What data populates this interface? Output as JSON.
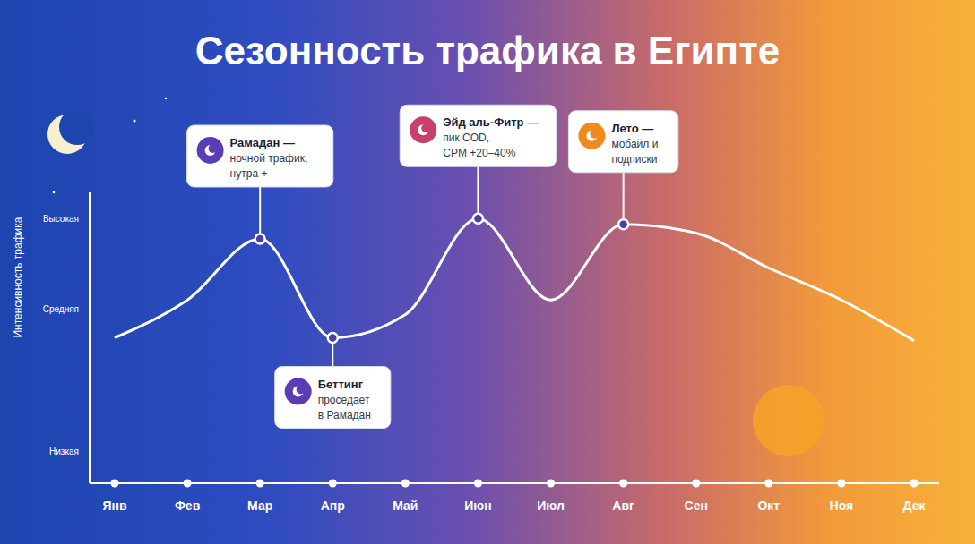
{
  "chart_data": {
    "type": "line",
    "title": "Сезонность трафика в Египте",
    "y_label": "Интенсивность трафика",
    "categories": [
      "Янв",
      "Фев",
      "Мар",
      "Апр",
      "Май",
      "Июн",
      "Июл",
      "Авг",
      "Сен",
      "Окт",
      "Ноя",
      "Дек"
    ],
    "values": [
      50,
      63,
      84,
      50,
      58,
      91,
      63,
      89,
      86,
      74,
      63,
      49
    ],
    "color": "#ffffff",
    "ylim": [
      0,
      100
    ],
    "yticks": [
      {
        "value": 11,
        "label": "Низкая"
      },
      {
        "value": 60,
        "label": "Средняя"
      },
      {
        "value": 91,
        "label": "Высокая"
      }
    ],
    "grid": false,
    "annotations": [
      {
        "category": "Мар",
        "title": "Рамадан —",
        "text": [
          "ночной трафик,",
          "нутра +"
        ]
      },
      {
        "category": "Апр",
        "title": "Беттинг",
        "text": [
          "проседает",
          "в Рамадан"
        ]
      },
      {
        "category": "Июн",
        "title": "Эйд аль-Фитр —",
        "text": [
          "пик COD,",
          "CPM +20–40%"
        ]
      },
      {
        "category": "Авг",
        "title": "Лето —",
        "text": [
          "мобайл и",
          "подписки"
        ]
      }
    ]
  }
}
